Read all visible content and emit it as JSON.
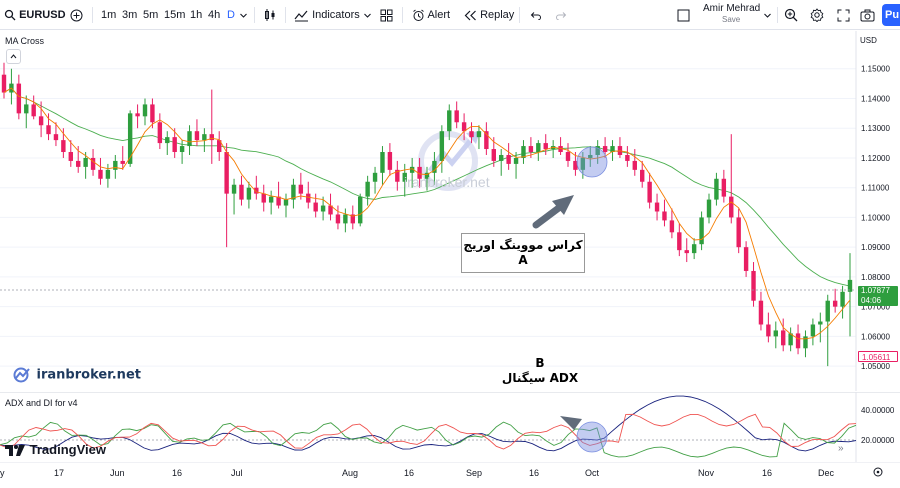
{
  "toolbar": {
    "symbol": "EURUSD",
    "intervals": [
      "1m",
      "3m",
      "5m",
      "15m",
      "1h",
      "4h",
      "D"
    ],
    "active_interval": "D",
    "indicators_label": "Indicators",
    "alert_label": "Alert",
    "replay_label": "Replay",
    "user_name": "Amir Mehrad",
    "save_label": "Save",
    "publish_label": "Pu"
  },
  "main_chart": {
    "indicator_label": "MA Cross",
    "currency_label": "USD",
    "price_ticks": [
      "1.15000",
      "1.14000",
      "1.13000",
      "1.12000",
      "1.11000",
      "1.10000",
      "1.09000",
      "1.08000",
      "1.07000",
      "1.06000",
      "1.05000"
    ],
    "current_price": "1.07877",
    "countdown": "04:06",
    "low_price": "1.05611",
    "watermark_text": "iranbroker.net",
    "callout_a_line1": "کراس مووینگ اوریج",
    "callout_a_line2": "A",
    "callout_b_line1": "B",
    "callout_b_line2": "ADX سیگنال",
    "brand_text": "iranbroker.net",
    "colors": {
      "up": "#26a69a",
      "up_candle": "#2e9e3e",
      "down": "#e91e63",
      "ma_fast": "#f57c00",
      "ma_slow": "#4caf50",
      "highlight": "#7b8fe0"
    }
  },
  "indicator_pane": {
    "label": "ADX and DI for v4",
    "ticks": [
      "40.00000",
      "20.00000"
    ],
    "colors": {
      "adx": "#1a237e",
      "plus_di": "#43a047",
      "minus_di": "#ef5350"
    }
  },
  "time_axis": {
    "labels": [
      "y",
      "17",
      "Jun",
      "16",
      "Jul",
      "Aug",
      "16",
      "Sep",
      "16",
      "Oct",
      "Nov",
      "16",
      "Dec"
    ]
  },
  "footer": {
    "logo_text": "TradingView"
  },
  "chart_data": {
    "type": "candlestick",
    "title": "EURUSD",
    "ylabel": "USD",
    "ylim": [
      1.045,
      1.16
    ],
    "candles": [
      [
        1.148,
        1.152,
        1.14,
        1.142
      ],
      [
        1.142,
        1.15,
        1.138,
        1.145
      ],
      [
        1.145,
        1.148,
        1.133,
        1.135
      ],
      [
        1.135,
        1.141,
        1.13,
        1.138
      ],
      [
        1.138,
        1.141,
        1.133,
        1.134
      ],
      [
        1.134,
        1.139,
        1.127,
        1.131
      ],
      [
        1.131,
        1.135,
        1.126,
        1.128
      ],
      [
        1.128,
        1.132,
        1.124,
        1.126
      ],
      [
        1.126,
        1.13,
        1.12,
        1.122
      ],
      [
        1.122,
        1.126,
        1.117,
        1.119
      ],
      [
        1.119,
        1.124,
        1.115,
        1.117
      ],
      [
        1.117,
        1.122,
        1.113,
        1.12
      ],
      [
        1.12,
        1.123,
        1.114,
        1.116
      ],
      [
        1.116,
        1.12,
        1.111,
        1.113
      ],
      [
        1.113,
        1.118,
        1.11,
        1.116
      ],
      [
        1.116,
        1.121,
        1.113,
        1.119
      ],
      [
        1.119,
        1.124,
        1.116,
        1.118
      ],
      [
        1.118,
        1.136,
        1.117,
        1.135
      ],
      [
        1.135,
        1.138,
        1.13,
        1.134
      ],
      [
        1.134,
        1.14,
        1.131,
        1.138
      ],
      [
        1.138,
        1.14,
        1.13,
        1.132
      ],
      [
        1.132,
        1.135,
        1.123,
        1.125
      ],
      [
        1.125,
        1.129,
        1.121,
        1.127
      ],
      [
        1.127,
        1.13,
        1.12,
        1.122
      ],
      [
        1.122,
        1.126,
        1.118,
        1.124
      ],
      [
        1.124,
        1.131,
        1.121,
        1.129
      ],
      [
        1.129,
        1.133,
        1.124,
        1.126
      ],
      [
        1.126,
        1.13,
        1.122,
        1.128
      ],
      [
        1.128,
        1.143,
        1.118,
        1.126
      ],
      [
        1.126,
        1.129,
        1.119,
        1.122
      ],
      [
        1.122,
        1.125,
        1.09,
        1.108
      ],
      [
        1.108,
        1.113,
        1.101,
        1.111
      ],
      [
        1.111,
        1.114,
        1.104,
        1.106
      ],
      [
        1.106,
        1.112,
        1.103,
        1.11
      ],
      [
        1.11,
        1.114,
        1.106,
        1.108
      ],
      [
        1.108,
        1.111,
        1.102,
        1.105
      ],
      [
        1.105,
        1.109,
        1.101,
        1.107
      ],
      [
        1.107,
        1.112,
        1.103,
        1.104
      ],
      [
        1.104,
        1.108,
        1.1,
        1.106
      ],
      [
        1.106,
        1.113,
        1.103,
        1.111
      ],
      [
        1.111,
        1.115,
        1.106,
        1.108
      ],
      [
        1.108,
        1.112,
        1.103,
        1.105
      ],
      [
        1.105,
        1.108,
        1.1,
        1.102
      ],
      [
        1.102,
        1.107,
        1.099,
        1.104
      ],
      [
        1.104,
        1.108,
        1.099,
        1.101
      ],
      [
        1.101,
        1.104,
        1.096,
        1.098
      ],
      [
        1.098,
        1.103,
        1.095,
        1.101
      ],
      [
        1.101,
        1.104,
        1.096,
        1.098
      ],
      [
        1.098,
        1.108,
        1.097,
        1.107
      ],
      [
        1.107,
        1.114,
        1.104,
        1.112
      ],
      [
        1.112,
        1.117,
        1.108,
        1.115
      ],
      [
        1.115,
        1.124,
        1.111,
        1.122
      ],
      [
        1.122,
        1.125,
        1.114,
        1.116
      ],
      [
        1.116,
        1.119,
        1.109,
        1.112
      ],
      [
        1.112,
        1.118,
        1.107,
        1.115
      ],
      [
        1.115,
        1.12,
        1.11,
        1.117
      ],
      [
        1.117,
        1.12,
        1.11,
        1.113
      ],
      [
        1.113,
        1.117,
        1.109,
        1.115
      ],
      [
        1.115,
        1.122,
        1.111,
        1.119
      ],
      [
        1.119,
        1.131,
        1.115,
        1.129
      ],
      [
        1.129,
        1.138,
        1.126,
        1.136
      ],
      [
        1.136,
        1.139,
        1.13,
        1.132
      ],
      [
        1.132,
        1.135,
        1.126,
        1.129
      ],
      [
        1.129,
        1.132,
        1.125,
        1.127
      ],
      [
        1.127,
        1.131,
        1.123,
        1.129
      ],
      [
        1.129,
        1.132,
        1.121,
        1.123
      ],
      [
        1.123,
        1.127,
        1.117,
        1.119
      ],
      [
        1.119,
        1.123,
        1.114,
        1.121
      ],
      [
        1.121,
        1.125,
        1.116,
        1.118
      ],
      [
        1.118,
        1.122,
        1.113,
        1.12
      ],
      [
        1.12,
        1.126,
        1.118,
        1.124
      ],
      [
        1.124,
        1.127,
        1.12,
        1.122
      ],
      [
        1.122,
        1.126,
        1.119,
        1.125
      ],
      [
        1.125,
        1.128,
        1.121,
        1.123
      ],
      [
        1.123,
        1.126,
        1.12,
        1.124
      ],
      [
        1.124,
        1.127,
        1.121,
        1.122
      ],
      [
        1.122,
        1.125,
        1.117,
        1.119
      ],
      [
        1.119,
        1.122,
        1.114,
        1.116
      ],
      [
        1.116,
        1.122,
        1.113,
        1.12
      ],
      [
        1.12,
        1.124,
        1.117,
        1.121
      ],
      [
        1.121,
        1.126,
        1.118,
        1.124
      ],
      [
        1.124,
        1.127,
        1.12,
        1.122
      ],
      [
        1.122,
        1.126,
        1.119,
        1.124
      ],
      [
        1.124,
        1.127,
        1.12,
        1.121
      ],
      [
        1.121,
        1.124,
        1.117,
        1.119
      ],
      [
        1.119,
        1.123,
        1.114,
        1.116
      ],
      [
        1.116,
        1.119,
        1.11,
        1.112
      ],
      [
        1.112,
        1.115,
        1.103,
        1.105
      ],
      [
        1.105,
        1.108,
        1.099,
        1.102
      ],
      [
        1.102,
        1.106,
        1.097,
        1.099
      ],
      [
        1.099,
        1.103,
        1.093,
        1.095
      ],
      [
        1.095,
        1.098,
        1.087,
        1.089
      ],
      [
        1.089,
        1.093,
        1.085,
        1.088
      ],
      [
        1.088,
        1.093,
        1.086,
        1.091
      ],
      [
        1.091,
        1.102,
        1.089,
        1.1
      ],
      [
        1.1,
        1.108,
        1.098,
        1.106
      ],
      [
        1.106,
        1.115,
        1.104,
        1.113
      ],
      [
        1.113,
        1.116,
        1.105,
        1.107
      ],
      [
        1.107,
        1.128,
        1.098,
        1.1
      ],
      [
        1.1,
        1.103,
        1.088,
        1.09
      ],
      [
        1.09,
        1.092,
        1.08,
        1.082
      ],
      [
        1.082,
        1.085,
        1.07,
        1.072
      ],
      [
        1.072,
        1.075,
        1.062,
        1.064
      ],
      [
        1.064,
        1.068,
        1.058,
        1.06
      ],
      [
        1.06,
        1.065,
        1.056,
        1.062
      ],
      [
        1.062,
        1.066,
        1.055,
        1.057
      ],
      [
        1.057,
        1.063,
        1.055,
        1.061
      ],
      [
        1.061,
        1.064,
        1.054,
        1.056
      ],
      [
        1.056,
        1.062,
        1.053,
        1.06
      ],
      [
        1.06,
        1.066,
        1.057,
        1.064
      ],
      [
        1.064,
        1.068,
        1.058,
        1.065
      ],
      [
        1.065,
        1.074,
        1.05,
        1.072
      ],
      [
        1.072,
        1.076,
        1.068,
        1.07
      ],
      [
        1.07,
        1.077,
        1.066,
        1.075
      ],
      [
        1.075,
        1.088,
        1.06,
        1.079
      ]
    ],
    "ma_fast_color": "orange",
    "ma_slow_color": "green"
  }
}
